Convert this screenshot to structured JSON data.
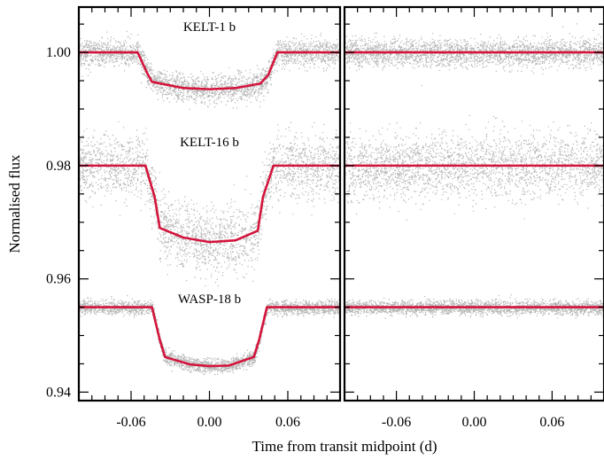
{
  "chart_data": {
    "type": "scatter",
    "ylabel": "Normalised flux",
    "xlabel": "Time from transit midpoint (d)",
    "xlim": [
      -0.1,
      0.1
    ],
    "ylim": [
      0.9385,
      1.008
    ],
    "x_ticks": [
      "-0.06",
      "0.00",
      "0.06"
    ],
    "x_tick_values": [
      -0.06,
      0.0,
      0.06
    ],
    "y_ticks": [
      "0.94",
      "0.96",
      "0.98",
      "1.00"
    ],
    "y_tick_values": [
      0.94,
      0.96,
      0.98,
      1.0
    ],
    "colors": {
      "data": "#b4b4b4",
      "model": "#d4143c",
      "axes": "#000000"
    },
    "grid": false,
    "panels": [
      {
        "name": "transit",
        "show_y_labels": true
      },
      {
        "name": "secondary-eclipse",
        "show_y_labels": false
      }
    ],
    "series": [
      {
        "name": "KELT-1 b",
        "baseline": 1.0,
        "scatter": 0.0012,
        "transit_model": {
          "x": [
            -0.1,
            -0.055,
            -0.048,
            -0.044,
            -0.02,
            0.0,
            0.02,
            0.039,
            0.045,
            0.052,
            0.1
          ],
          "y": [
            1.0,
            1.0,
            0.9965,
            0.9948,
            0.9937,
            0.9935,
            0.9937,
            0.9945,
            0.996,
            1.0,
            1.0
          ]
        },
        "eclipse_model": {
          "x": [
            -0.1,
            0.1
          ],
          "y": [
            1.0,
            1.0
          ]
        }
      },
      {
        "name": "KELT-16 b",
        "baseline": 0.98,
        "scatter": 0.0028,
        "transit_model": {
          "x": [
            -0.1,
            -0.049,
            -0.042,
            -0.038,
            -0.02,
            0.0,
            0.02,
            0.037,
            0.041,
            0.049,
            0.1
          ],
          "y": [
            0.98,
            0.98,
            0.9745,
            0.969,
            0.9673,
            0.9665,
            0.9668,
            0.9685,
            0.9745,
            0.98,
            0.98
          ]
        },
        "eclipse_model": {
          "x": [
            -0.1,
            0.1
          ],
          "y": [
            0.98,
            0.98
          ]
        }
      },
      {
        "name": "WASP-18 b",
        "baseline": 0.955,
        "scatter": 0.0006,
        "transit_model": {
          "x": [
            -0.1,
            -0.044,
            -0.038,
            -0.034,
            -0.015,
            0.0,
            0.015,
            0.034,
            0.038,
            0.044,
            0.1
          ],
          "y": [
            0.955,
            0.955,
            0.9492,
            0.9462,
            0.9449,
            0.9446,
            0.9447,
            0.9462,
            0.9492,
            0.955,
            0.955
          ]
        },
        "eclipse_model": {
          "x": [
            -0.1,
            0.1
          ],
          "y": [
            0.955,
            0.955
          ]
        }
      }
    ]
  }
}
